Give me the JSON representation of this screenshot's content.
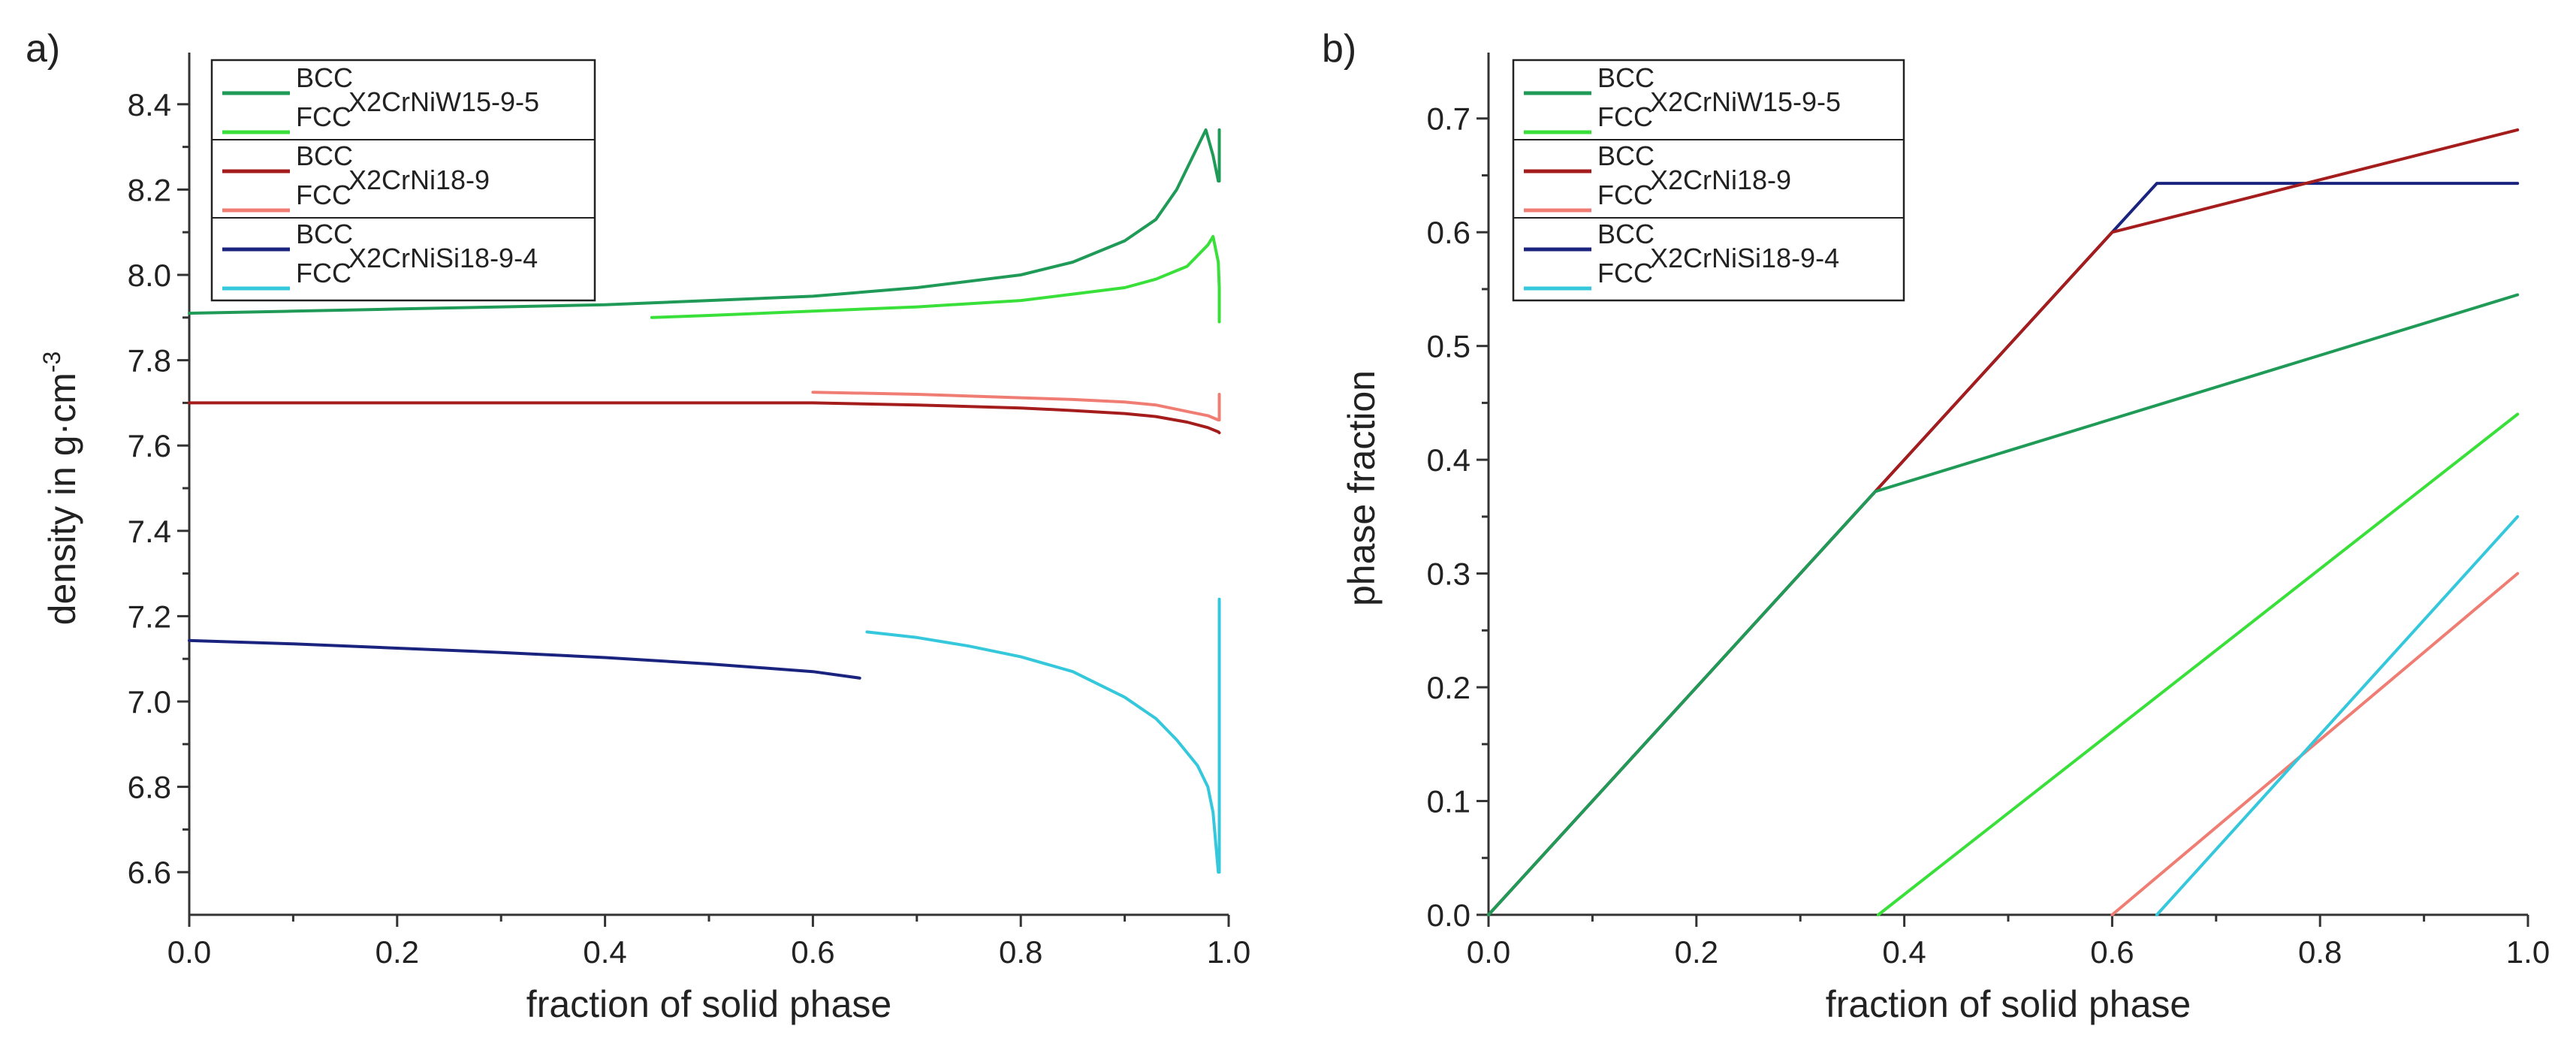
{
  "chart_data": [
    {
      "panel_label": "a)",
      "type": "line",
      "title": "",
      "xlabel": "fraction of solid phase",
      "ylabel_main": "density in g·cm",
      "ylabel_sup": "-3",
      "xlim": [
        0.0,
        1.0
      ],
      "ylim": [
        6.5,
        8.5
      ],
      "xticks": [
        "0.0",
        "0.2",
        "0.4",
        "0.6",
        "0.8",
        "1.0"
      ],
      "yticks": [
        "6.6",
        "6.8",
        "7.0",
        "7.2",
        "7.4",
        "7.6",
        "7.8",
        "8.0",
        "8.2",
        "8.4"
      ],
      "legend": {
        "position": "top-left",
        "groups": [
          {
            "alloy": "X2CrNiW15-9-5",
            "entries": [
              {
                "label": "BCC",
                "color": "#1f9a57"
              },
              {
                "label": "FCC",
                "color": "#39e039"
              }
            ]
          },
          {
            "alloy": "X2CrNi18-9",
            "entries": [
              {
                "label": "BCC",
                "color": "#a51c1c"
              },
              {
                "label": "FCC",
                "color": "#f07d73"
              }
            ]
          },
          {
            "alloy": "X2CrNiSi18-9-4",
            "entries": [
              {
                "label": "BCC",
                "color": "#1a237e"
              },
              {
                "label": "FCC",
                "color": "#35c8dc"
              }
            ]
          }
        ]
      },
      "series": [
        {
          "name": "X2CrNiW15-9-5 BCC",
          "color": "#1f9a57",
          "x": [
            0,
            0.1,
            0.2,
            0.3,
            0.4,
            0.5,
            0.6,
            0.7,
            0.8,
            0.85,
            0.9,
            0.93,
            0.95,
            0.97,
            0.978,
            0.985,
            0.99,
            0.991,
            0.991
          ],
          "y": [
            7.91,
            7.915,
            7.92,
            7.925,
            7.93,
            7.94,
            7.95,
            7.97,
            8.0,
            8.03,
            8.08,
            8.13,
            8.2,
            8.3,
            8.34,
            8.28,
            8.22,
            8.22,
            8.34
          ]
        },
        {
          "name": "X2CrNiW15-9-5 FCC",
          "color": "#39e039",
          "x": [
            0.445,
            0.5,
            0.6,
            0.7,
            0.8,
            0.85,
            0.9,
            0.93,
            0.96,
            0.98,
            0.985,
            0.99,
            0.991,
            0.991
          ],
          "y": [
            7.9,
            7.905,
            7.915,
            7.925,
            7.94,
            7.955,
            7.97,
            7.99,
            8.02,
            8.07,
            8.09,
            8.03,
            7.97,
            7.89
          ]
        },
        {
          "name": "X2CrNi18-9 BCC",
          "color": "#a51c1c",
          "x": [
            0,
            0.2,
            0.4,
            0.6,
            0.7,
            0.8,
            0.85,
            0.9,
            0.93,
            0.96,
            0.98,
            0.99,
            0.991
          ],
          "y": [
            7.7,
            7.7,
            7.7,
            7.7,
            7.695,
            7.688,
            7.682,
            7.675,
            7.668,
            7.655,
            7.642,
            7.632,
            7.63
          ]
        },
        {
          "name": "X2CrNi18-9 FCC",
          "color": "#f07d73",
          "x": [
            0.6,
            0.7,
            0.8,
            0.85,
            0.9,
            0.93,
            0.96,
            0.98,
            0.99,
            0.991,
            0.991
          ],
          "y": [
            7.725,
            7.72,
            7.712,
            7.708,
            7.702,
            7.695,
            7.68,
            7.67,
            7.66,
            7.66,
            7.72
          ]
        },
        {
          "name": "X2CrNiSi18-9-4 BCC",
          "color": "#1a237e",
          "x": [
            0,
            0.1,
            0.2,
            0.3,
            0.4,
            0.5,
            0.6,
            0.645
          ],
          "y": [
            7.143,
            7.135,
            7.125,
            7.115,
            7.103,
            7.088,
            7.07,
            7.055
          ]
        },
        {
          "name": "X2CrNiSi18-9-4 FCC",
          "color": "#35c8dc",
          "x": [
            0.652,
            0.7,
            0.75,
            0.8,
            0.85,
            0.9,
            0.93,
            0.95,
            0.97,
            0.98,
            0.985,
            0.99,
            0.991,
            0.991
          ],
          "y": [
            7.163,
            7.15,
            7.13,
            7.105,
            7.07,
            7.01,
            6.96,
            6.91,
            6.85,
            6.8,
            6.74,
            6.6,
            6.6,
            7.24
          ]
        }
      ]
    },
    {
      "panel_label": "b)",
      "type": "line",
      "title": "",
      "xlabel": "fraction of solid phase",
      "ylabel_main": "phase fraction",
      "ylabel_sup": "",
      "xlim": [
        0.0,
        1.0
      ],
      "ylim": [
        0.0,
        0.75
      ],
      "xticks": [
        "0.0",
        "0.2",
        "0.4",
        "0.6",
        "0.8",
        "1.0"
      ],
      "yticks": [
        "0.0",
        "0.1",
        "0.2",
        "0.3",
        "0.4",
        "0.5",
        "0.6",
        "0.7"
      ],
      "legend": {
        "position": "top-left",
        "groups": [
          {
            "alloy": "X2CrNiW15-9-5",
            "entries": [
              {
                "label": "BCC",
                "color": "#1f9a57"
              },
              {
                "label": "FCC",
                "color": "#39e039"
              }
            ]
          },
          {
            "alloy": "X2CrNi18-9",
            "entries": [
              {
                "label": "BCC",
                "color": "#a51c1c"
              },
              {
                "label": "FCC",
                "color": "#f07d73"
              }
            ]
          },
          {
            "alloy": "X2CrNiSi18-9-4",
            "entries": [
              {
                "label": "BCC",
                "color": "#1a237e"
              },
              {
                "label": "FCC",
                "color": "#35c8dc"
              }
            ]
          }
        ]
      },
      "series": [
        {
          "name": "X2CrNiSi18-9-4 BCC",
          "color": "#1a237e",
          "x": [
            0,
            0.643,
            0.99
          ],
          "y": [
            0,
            0.643,
            0.643
          ]
        },
        {
          "name": "X2CrNi18-9 BCC",
          "color": "#a51c1c",
          "x": [
            0,
            0.6,
            0.99
          ],
          "y": [
            0,
            0.6,
            0.69
          ]
        },
        {
          "name": "X2CrNiW15-9-5 BCC",
          "color": "#1f9a57",
          "x": [
            0,
            0.372,
            0.99
          ],
          "y": [
            0,
            0.372,
            0.545
          ]
        },
        {
          "name": "X2CrNiW15-9-5 FCC",
          "color": "#39e039",
          "x": [
            0.375,
            0.99
          ],
          "y": [
            0,
            0.44
          ]
        },
        {
          "name": "X2CrNi18-9 FCC",
          "color": "#f07d73",
          "x": [
            0.6,
            0.99
          ],
          "y": [
            0,
            0.3
          ]
        },
        {
          "name": "X2CrNiSi18-9-4 FCC",
          "color": "#35c8dc",
          "x": [
            0.643,
            0.99
          ],
          "y": [
            0,
            0.35
          ]
        }
      ]
    }
  ]
}
